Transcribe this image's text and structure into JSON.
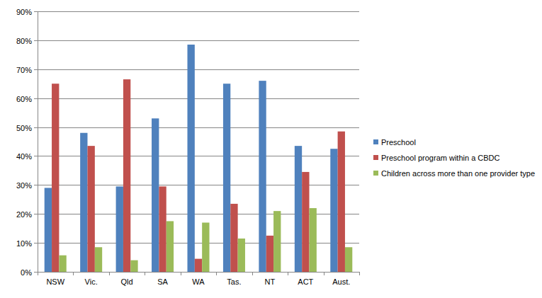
{
  "chart_data": {
    "type": "bar",
    "categories": [
      "NSW",
      "Vic.",
      "Qld",
      "SA",
      "WA",
      "Tas.",
      "NT",
      "ACT",
      "Aust."
    ],
    "series": [
      {
        "name": "Preschool",
        "color": "#4f81bd",
        "values": [
          29,
          48,
          29.5,
          53,
          78.5,
          65,
          66,
          43.5,
          42.5
        ]
      },
      {
        "name": "Preschool program within a CBDC",
        "color": "#c0504d",
        "values": [
          65,
          43.5,
          66.5,
          29.5,
          4.5,
          23.5,
          12.5,
          34.5,
          48.5
        ]
      },
      {
        "name": "Children across more than one provider type",
        "color": "#9bbb59",
        "values": [
          5.7,
          8.5,
          4,
          17.5,
          17,
          11.5,
          21,
          22,
          8.5
        ]
      }
    ],
    "ylim": [
      0,
      90
    ],
    "yticks": [
      {
        "value": 0,
        "label": "0%"
      },
      {
        "value": 10,
        "label": "10%"
      },
      {
        "value": 20,
        "label": "20%"
      },
      {
        "value": 30,
        "label": "30%"
      },
      {
        "value": 40,
        "label": "40%"
      },
      {
        "value": 50,
        "label": "50%"
      },
      {
        "value": 60,
        "label": "60%"
      },
      {
        "value": 70,
        "label": "70%"
      },
      {
        "value": 80,
        "label": "80%"
      },
      {
        "value": 90,
        "label": "90%"
      }
    ],
    "grid": true,
    "legend": "right"
  }
}
